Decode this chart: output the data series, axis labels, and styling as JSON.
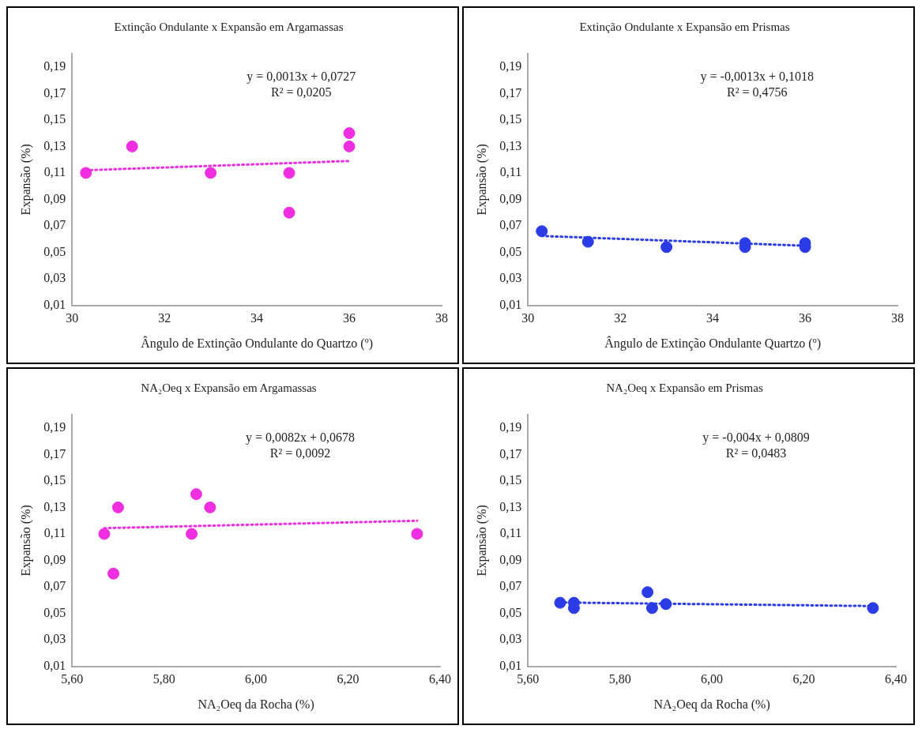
{
  "chart_data": [
    {
      "type": "scatter",
      "title": "Extinção Ondulante x Expansão em Argamassas",
      "xlabel": "Ângulo de Extinção Ondulante do Quartzo (º)",
      "ylabel": "Expansão (%)",
      "xlim": [
        30,
        38
      ],
      "xticks": [
        30,
        32,
        34,
        36,
        38
      ],
      "ylim": [
        0.01,
        0.2
      ],
      "yticks": [
        {
          "value": 0.01,
          "label": "0,01"
        },
        {
          "value": 0.03,
          "label": "0,03"
        },
        {
          "value": 0.05,
          "label": "0,05"
        },
        {
          "value": 0.07,
          "label": "0,07"
        },
        {
          "value": 0.09,
          "label": "0,09"
        },
        {
          "value": 0.11,
          "label": "0,11"
        },
        {
          "value": 0.13,
          "label": "0,13"
        },
        {
          "value": 0.15,
          "label": "0,15"
        },
        {
          "value": 0.17,
          "label": "0,17"
        },
        {
          "value": 0.19,
          "label": "0,19"
        }
      ],
      "series": [
        {
          "type": "scatter",
          "marker": "circle",
          "color": "#ee2ee0",
          "x": [
            30.3,
            31.3,
            33.0,
            34.7,
            34.7,
            36.0,
            36.0
          ],
          "values": [
            0.11,
            0.13,
            0.11,
            0.11,
            0.08,
            0.14,
            0.13
          ]
        },
        {
          "type": "line",
          "marker": "none",
          "line_style": "dotted",
          "color": "#ee2ee0",
          "x": [
            30.3,
            36.0
          ],
          "values": [
            0.112,
            0.119
          ]
        }
      ],
      "annotations": [
        "y = 0,0013x + 0,0727",
        "R² = 0,0205"
      ]
    },
    {
      "type": "scatter",
      "title": "Extinção Ondulante x Expansão em Prismas",
      "xlabel": "Ângulo de Extinção Ondulante Quartzo (º)",
      "ylabel": "Expansão (%)",
      "xlim": [
        30,
        38
      ],
      "xticks": [
        30,
        32,
        34,
        36,
        38
      ],
      "ylim": [
        0.01,
        0.2
      ],
      "yticks": [
        {
          "value": 0.01,
          "label": "0,01"
        },
        {
          "value": 0.03,
          "label": "0,03"
        },
        {
          "value": 0.05,
          "label": "0,05"
        },
        {
          "value": 0.07,
          "label": "0,07"
        },
        {
          "value": 0.09,
          "label": "0,09"
        },
        {
          "value": 0.11,
          "label": "0,11"
        },
        {
          "value": 0.13,
          "label": "0,13"
        },
        {
          "value": 0.15,
          "label": "0,15"
        },
        {
          "value": 0.17,
          "label": "0,17"
        },
        {
          "value": 0.19,
          "label": "0,19"
        }
      ],
      "series": [
        {
          "type": "scatter",
          "marker": "circle",
          "color": "#2b3ce6",
          "x": [
            30.3,
            31.3,
            33.0,
            34.7,
            34.7,
            36.0,
            36.0
          ],
          "values": [
            0.066,
            0.058,
            0.054,
            0.057,
            0.054,
            0.057,
            0.054
          ]
        },
        {
          "type": "line",
          "marker": "none",
          "line_style": "dotted",
          "color": "#2b3ce6",
          "x": [
            30.3,
            36.0
          ],
          "values": [
            0.0624,
            0.055
          ]
        }
      ],
      "annotations": [
        "y = -0,0013x + 0,1018",
        "R² = 0,4756"
      ]
    },
    {
      "type": "scatter",
      "title": "NA₂Oeq x Expansão em Argamassas",
      "xlabel": "NA₂Oeq da Rocha (%)",
      "ylabel": "Expansão (%)",
      "xlim": [
        5.6,
        6.4
      ],
      "xticks": [
        {
          "value": 5.6,
          "label": "5,60"
        },
        {
          "value": 5.8,
          "label": "5,80"
        },
        {
          "value": 6.0,
          "label": "6,00"
        },
        {
          "value": 6.2,
          "label": "6,20"
        },
        {
          "value": 6.4,
          "label": "6,40"
        }
      ],
      "ylim": [
        0.01,
        0.2
      ],
      "yticks": [
        {
          "value": 0.01,
          "label": "0,01"
        },
        {
          "value": 0.03,
          "label": "0,03"
        },
        {
          "value": 0.05,
          "label": "0,05"
        },
        {
          "value": 0.07,
          "label": "0,07"
        },
        {
          "value": 0.09,
          "label": "0,09"
        },
        {
          "value": 0.11,
          "label": "0,11"
        },
        {
          "value": 0.13,
          "label": "0,13"
        },
        {
          "value": 0.15,
          "label": "0,15"
        },
        {
          "value": 0.17,
          "label": "0,17"
        },
        {
          "value": 0.19,
          "label": "0,19"
        }
      ],
      "series": [
        {
          "type": "scatter",
          "marker": "circle",
          "color": "#ee2ee0",
          "x": [
            5.67,
            5.7,
            5.69,
            5.86,
            5.87,
            5.9,
            6.35
          ],
          "values": [
            0.11,
            0.13,
            0.08,
            0.11,
            0.14,
            0.13,
            0.11
          ]
        },
        {
          "type": "line",
          "marker": "none",
          "line_style": "dotted",
          "color": "#ee2ee0",
          "x": [
            5.67,
            6.35
          ],
          "values": [
            0.1143,
            0.1199
          ]
        }
      ],
      "annotations": [
        "y = 0,0082x + 0,0678",
        "R² = 0,0092"
      ]
    },
    {
      "type": "scatter",
      "title": "NA₂Oeq x Expansão em Prismas",
      "xlabel": "NA₂Oeq da Rocha (%)",
      "ylabel": "Expansão (%)",
      "xlim": [
        5.6,
        6.4
      ],
      "xticks": [
        {
          "value": 5.6,
          "label": "5,60"
        },
        {
          "value": 5.8,
          "label": "5,80"
        },
        {
          "value": 6.0,
          "label": "6,00"
        },
        {
          "value": 6.2,
          "label": "6,20"
        },
        {
          "value": 6.4,
          "label": "6,40"
        }
      ],
      "ylim": [
        0.01,
        0.2
      ],
      "yticks": [
        {
          "value": 0.01,
          "label": "0,01"
        },
        {
          "value": 0.03,
          "label": "0,03"
        },
        {
          "value": 0.05,
          "label": "0,05"
        },
        {
          "value": 0.07,
          "label": "0,07"
        },
        {
          "value": 0.09,
          "label": "0,09"
        },
        {
          "value": 0.11,
          "label": "0,11"
        },
        {
          "value": 0.13,
          "label": "0,13"
        },
        {
          "value": 0.15,
          "label": "0,15"
        },
        {
          "value": 0.17,
          "label": "0,17"
        },
        {
          "value": 0.19,
          "label": "0,19"
        }
      ],
      "series": [
        {
          "type": "scatter",
          "marker": "circle",
          "color": "#2b3ce6",
          "x": [
            5.67,
            5.7,
            5.7,
            5.86,
            5.87,
            5.9,
            6.35
          ],
          "values": [
            0.058,
            0.058,
            0.054,
            0.066,
            0.054,
            0.057,
            0.054
          ]
        },
        {
          "type": "line",
          "marker": "none",
          "line_style": "dotted",
          "color": "#2b3ce6",
          "x": [
            5.67,
            6.35
          ],
          "values": [
            0.0582,
            0.0555
          ]
        }
      ],
      "annotations": [
        "y = -0,004x + 0,0809",
        "R² = 0,0483"
      ]
    }
  ]
}
